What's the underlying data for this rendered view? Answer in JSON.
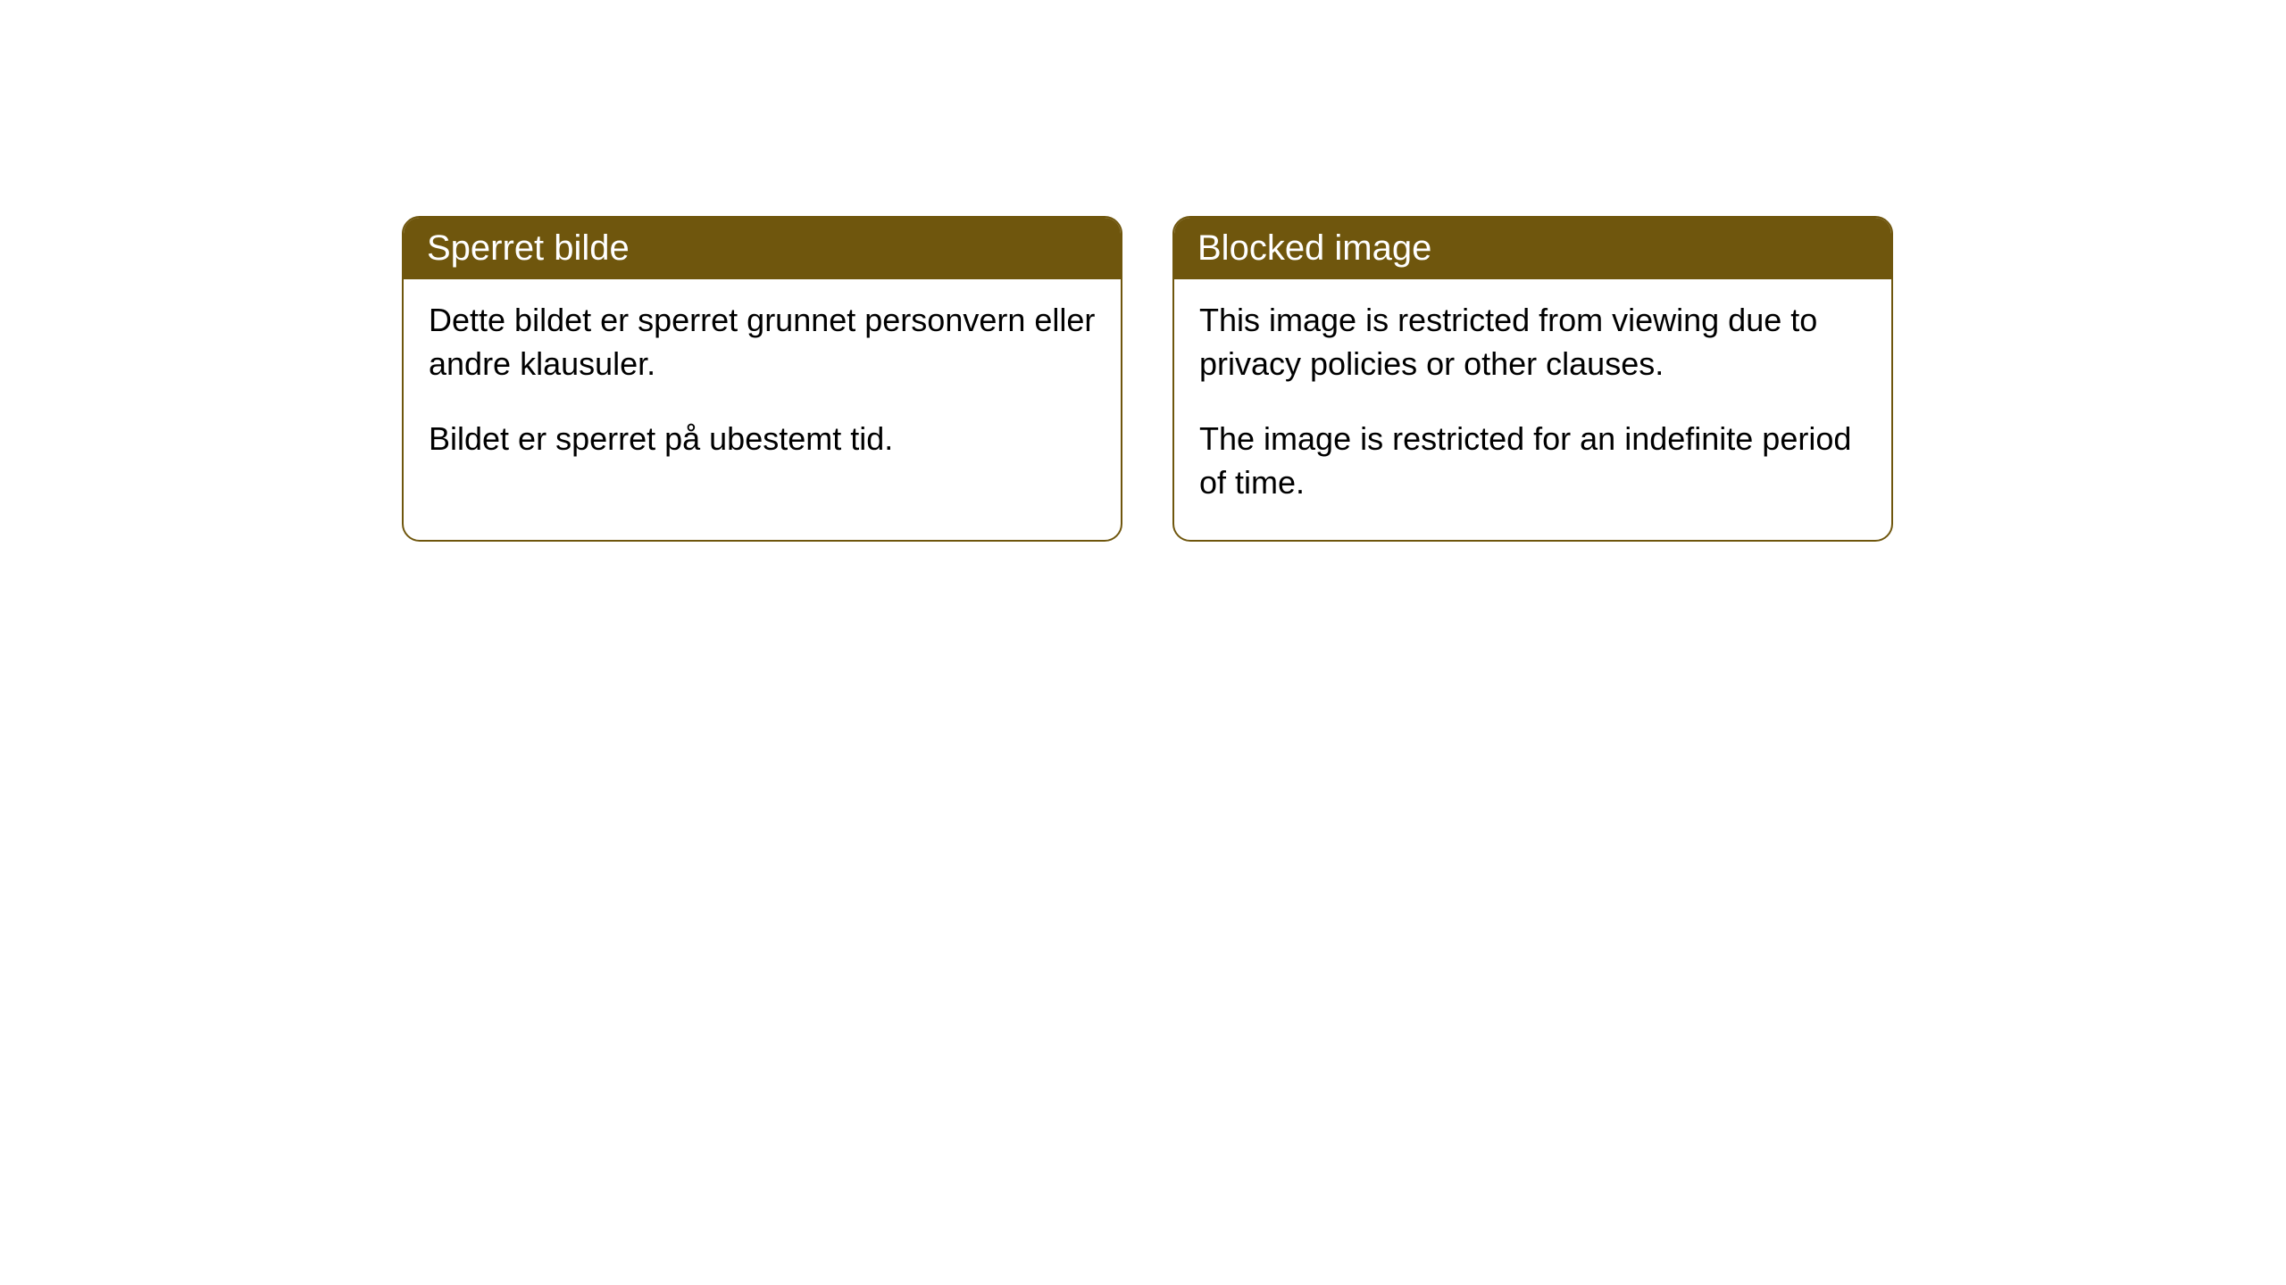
{
  "cards": [
    {
      "title": "Sperret bilde",
      "paragraph1": "Dette bildet er sperret grunnet personvern eller andre klausuler.",
      "paragraph2": "Bildet er sperret på ubestemt tid."
    },
    {
      "title": "Blocked image",
      "paragraph1": "This image is restricted from viewing due to privacy policies or other clauses.",
      "paragraph2": "The image is restricted for an indefinite period of time."
    }
  ],
  "style": {
    "header_background": "#6f560d",
    "header_text_color": "#ffffff",
    "border_color": "#6f560d",
    "body_background": "#ffffff",
    "body_text_color": "#000000",
    "border_radius": 20,
    "header_fontsize": 40,
    "body_fontsize": 36
  }
}
